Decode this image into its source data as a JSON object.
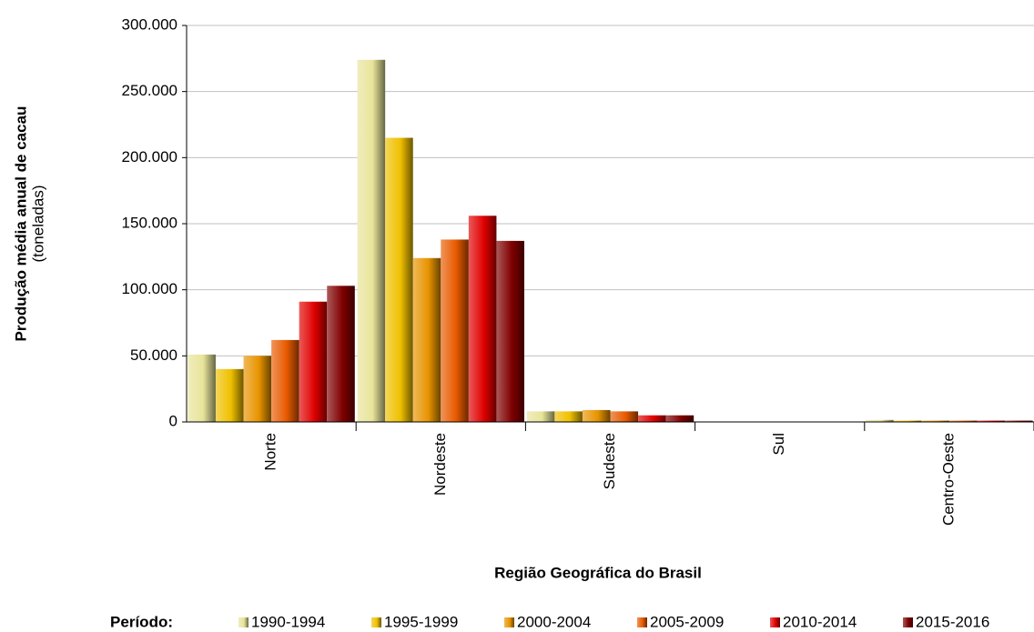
{
  "chart_data": {
    "type": "bar",
    "y_label": "Produção média anual de cacau",
    "y_sublabel": "(toneladas)",
    "x_label": "Região Geográfica do Brasil",
    "legend_title": "Período:",
    "categories": [
      "Norte",
      "Nordeste",
      "Sudeste",
      "Sul",
      "Centro-Oeste"
    ],
    "series": [
      {
        "name": "1990-1994",
        "color": "#e8e49a",
        "values": [
          51000,
          274000,
          8000,
          0,
          1500
        ]
      },
      {
        "name": "1995-1999",
        "color": "#f0c000",
        "values": [
          40000,
          215000,
          8000,
          0,
          1000
        ]
      },
      {
        "name": "2000-2004",
        "color": "#e89400",
        "values": [
          50000,
          124000,
          9000,
          0,
          1000
        ]
      },
      {
        "name": "2005-2009",
        "color": "#e85a00",
        "values": [
          62000,
          138000,
          8000,
          0,
          1000
        ]
      },
      {
        "name": "2010-2014",
        "color": "#e00000",
        "values": [
          91000,
          156000,
          5000,
          0,
          1000
        ]
      },
      {
        "name": "2015-2016",
        "color": "#800000",
        "values": [
          103000,
          137000,
          5000,
          0,
          1000
        ]
      }
    ],
    "ylim": [
      0,
      300000
    ],
    "yticks": [
      0,
      {
        "value": 50000,
        "label": "50.000"
      },
      {
        "value": 100000,
        "label": "100.000"
      },
      {
        "value": 150000,
        "label": "150.000"
      },
      {
        "value": 200000,
        "label": "200.000"
      },
      {
        "value": 250000,
        "label": "250.000"
      },
      {
        "value": 300000,
        "label": "300.000"
      }
    ],
    "grid": true
  }
}
